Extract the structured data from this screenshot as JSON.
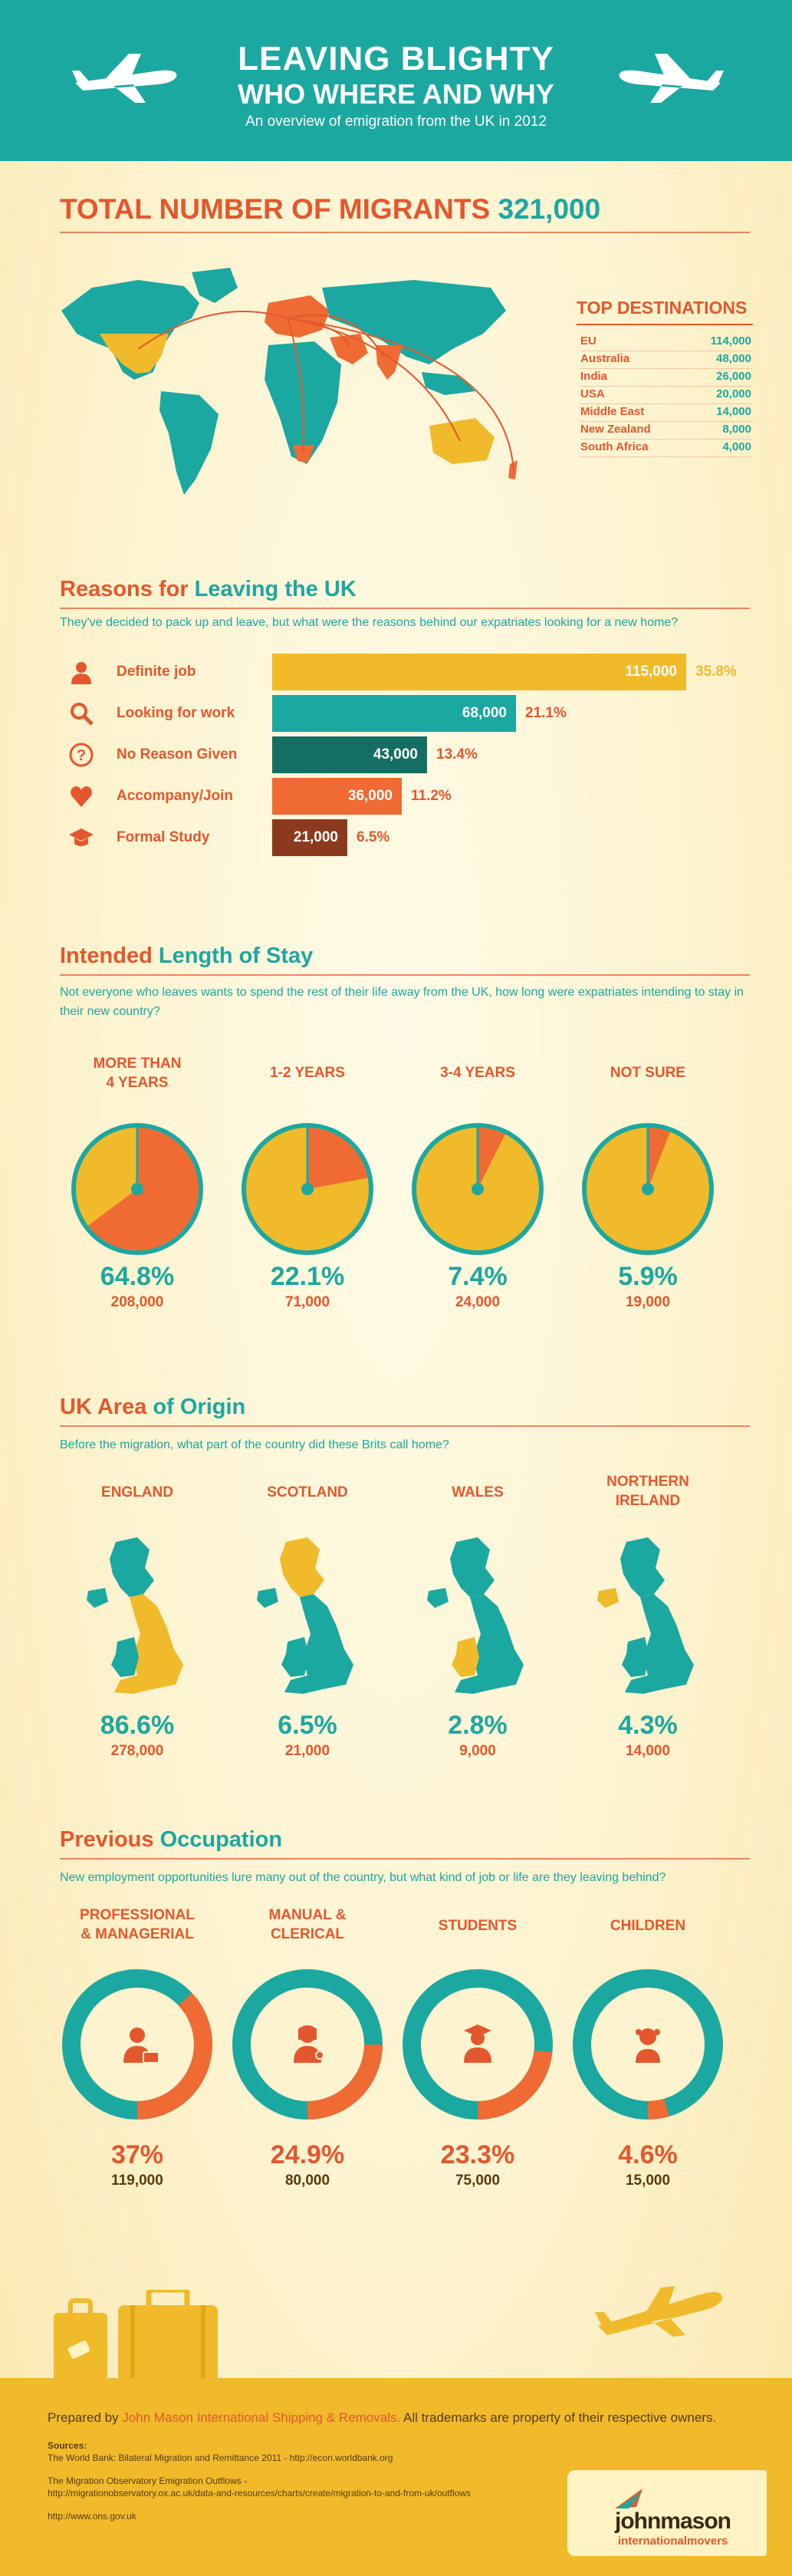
{
  "header": {
    "title_line1": "LEAVING BLIGHTY",
    "title_line2": "WHO WHERE AND WHY",
    "subtitle": "An overview of emigration from the UK in 2012"
  },
  "migrants": {
    "title": "TOTAL NUMBER OF MIGRANTS",
    "total": "321,000",
    "destinations_title": "TOP DESTINATIONS",
    "destinations": [
      {
        "name": "EU",
        "value": "114,000"
      },
      {
        "name": "Australia",
        "value": "48,000"
      },
      {
        "name": "India",
        "value": "26,000"
      },
      {
        "name": "USA",
        "value": "20,000"
      },
      {
        "name": "Middle East",
        "value": "14,000"
      },
      {
        "name": "New Zealand",
        "value": "8,000"
      },
      {
        "name": "South Africa",
        "value": "4,000"
      }
    ]
  },
  "reasons": {
    "title_a": "Reasons for ",
    "title_b": "Leaving the UK",
    "intro": "They've decided to pack up and leave, but what were the reasons behind our expatriates looking for a new home?",
    "items": [
      {
        "label": "Definite job",
        "value": "115,000",
        "pct": "35.8%",
        "icon": "person-icon",
        "color": "#f0ba2a",
        "fraction": 0.358
      },
      {
        "label": "Looking for work",
        "value": "68,000",
        "pct": "21.1%",
        "icon": "magnifier-icon",
        "color": "#1ba8a0",
        "fraction": 0.211
      },
      {
        "label": "No Reason Given",
        "value": "43,000",
        "pct": "13.4%",
        "icon": "question-icon",
        "color": "#146e63",
        "fraction": 0.134
      },
      {
        "label": "Accompany/Join",
        "value": "36,000",
        "pct": "11.2%",
        "icon": "heart-icon",
        "color": "#f06a34",
        "fraction": 0.112
      },
      {
        "label": "Formal Study",
        "value": "21,000",
        "pct": "6.5%",
        "icon": "graduation-cap-icon",
        "color": "#8c3a1e",
        "fraction": 0.065
      }
    ]
  },
  "stay": {
    "title_a": "Intended ",
    "title_b": "Length of Stay",
    "intro": "Not everyone who leaves wants to spend the rest of their life away from the UK, how long were expatriates intending to stay in their new country?",
    "items": [
      {
        "label_line1": "MORE THAN",
        "label_line2": "4 YEARS",
        "pct": "64.8%",
        "count": "208,000",
        "fraction": 0.648
      },
      {
        "label_line1": "1-2 YEARS",
        "label_line2": "",
        "pct": "22.1%",
        "count": "71,000",
        "fraction": 0.221
      },
      {
        "label_line1": "3-4 YEARS",
        "label_line2": "",
        "pct": "7.4%",
        "count": "24,000",
        "fraction": 0.074
      },
      {
        "label_line1": "NOT SURE",
        "label_line2": "",
        "pct": "5.9%",
        "count": "19,000",
        "fraction": 0.059
      }
    ]
  },
  "origin": {
    "title_a": "UK Area ",
    "title_b": "of Origin",
    "intro": "Before the migration, what part of the country did these Brits call home?",
    "items": [
      {
        "label_line1": "ENGLAND",
        "label_line2": "",
        "pct": "86.6%",
        "count": "278,000",
        "region": "england"
      },
      {
        "label_line1": "SCOTLAND",
        "label_line2": "",
        "pct": "6.5%",
        "count": "21,000",
        "region": "scotland"
      },
      {
        "label_line1": "WALES",
        "label_line2": "",
        "pct": "2.8%",
        "count": "9,000",
        "region": "wales"
      },
      {
        "label_line1": "NORTHERN",
        "label_line2": "IRELAND",
        "pct": "4.3%",
        "count": "14,000",
        "region": "northern-ireland"
      }
    ]
  },
  "occupation": {
    "title_a": "Previous ",
    "title_b": "Occupation",
    "intro": "New employment opportunities lure many out of the country, but what kind of job or life are they leaving behind?",
    "items": [
      {
        "label_line1": "PROFESSIONAL",
        "label_line2": "& MANAGERIAL",
        "pct": "37%",
        "count": "119,000",
        "fraction": 0.37,
        "icon": "businessman-icon"
      },
      {
        "label_line1": "MANUAL &",
        "label_line2": "CLERICAL",
        "pct": "24.9%",
        "count": "80,000",
        "fraction": 0.249,
        "icon": "receptionist-icon"
      },
      {
        "label_line1": "STUDENTS",
        "label_line2": "",
        "pct": "23.3%",
        "count": "75,000",
        "fraction": 0.233,
        "icon": "graduate-icon"
      },
      {
        "label_line1": "CHILDREN",
        "label_line2": "",
        "pct": "4.6%",
        "count": "15,000",
        "fraction": 0.046,
        "icon": "child-icon"
      }
    ]
  },
  "footer": {
    "prepared_by": "Prepared by ",
    "company": "John Mason International Shipping & Removals.",
    "trademarks": " All trademarks are property of their respective owners.",
    "sources_label": "Sources:",
    "source1": "The World Bank: Bilateral Migration and Remittance 2011 - http://econ.worldbank.org",
    "source2": "The Migration Observatory Emigration Outflows -",
    "source2b": "http://migrationobservatory.ox.ac.uk/data-and-resources/charts/create/migration-to-and-from-uk/outflows",
    "source3": "http://www.ons.gov.uk",
    "logo_line1": "johnmason",
    "logo_line2": "internationalmovers"
  },
  "colors": {
    "teal": "#1ba8a0",
    "orange": "#e4572e",
    "yellow": "#f0ba2a",
    "cream": "#fdf3cf"
  }
}
